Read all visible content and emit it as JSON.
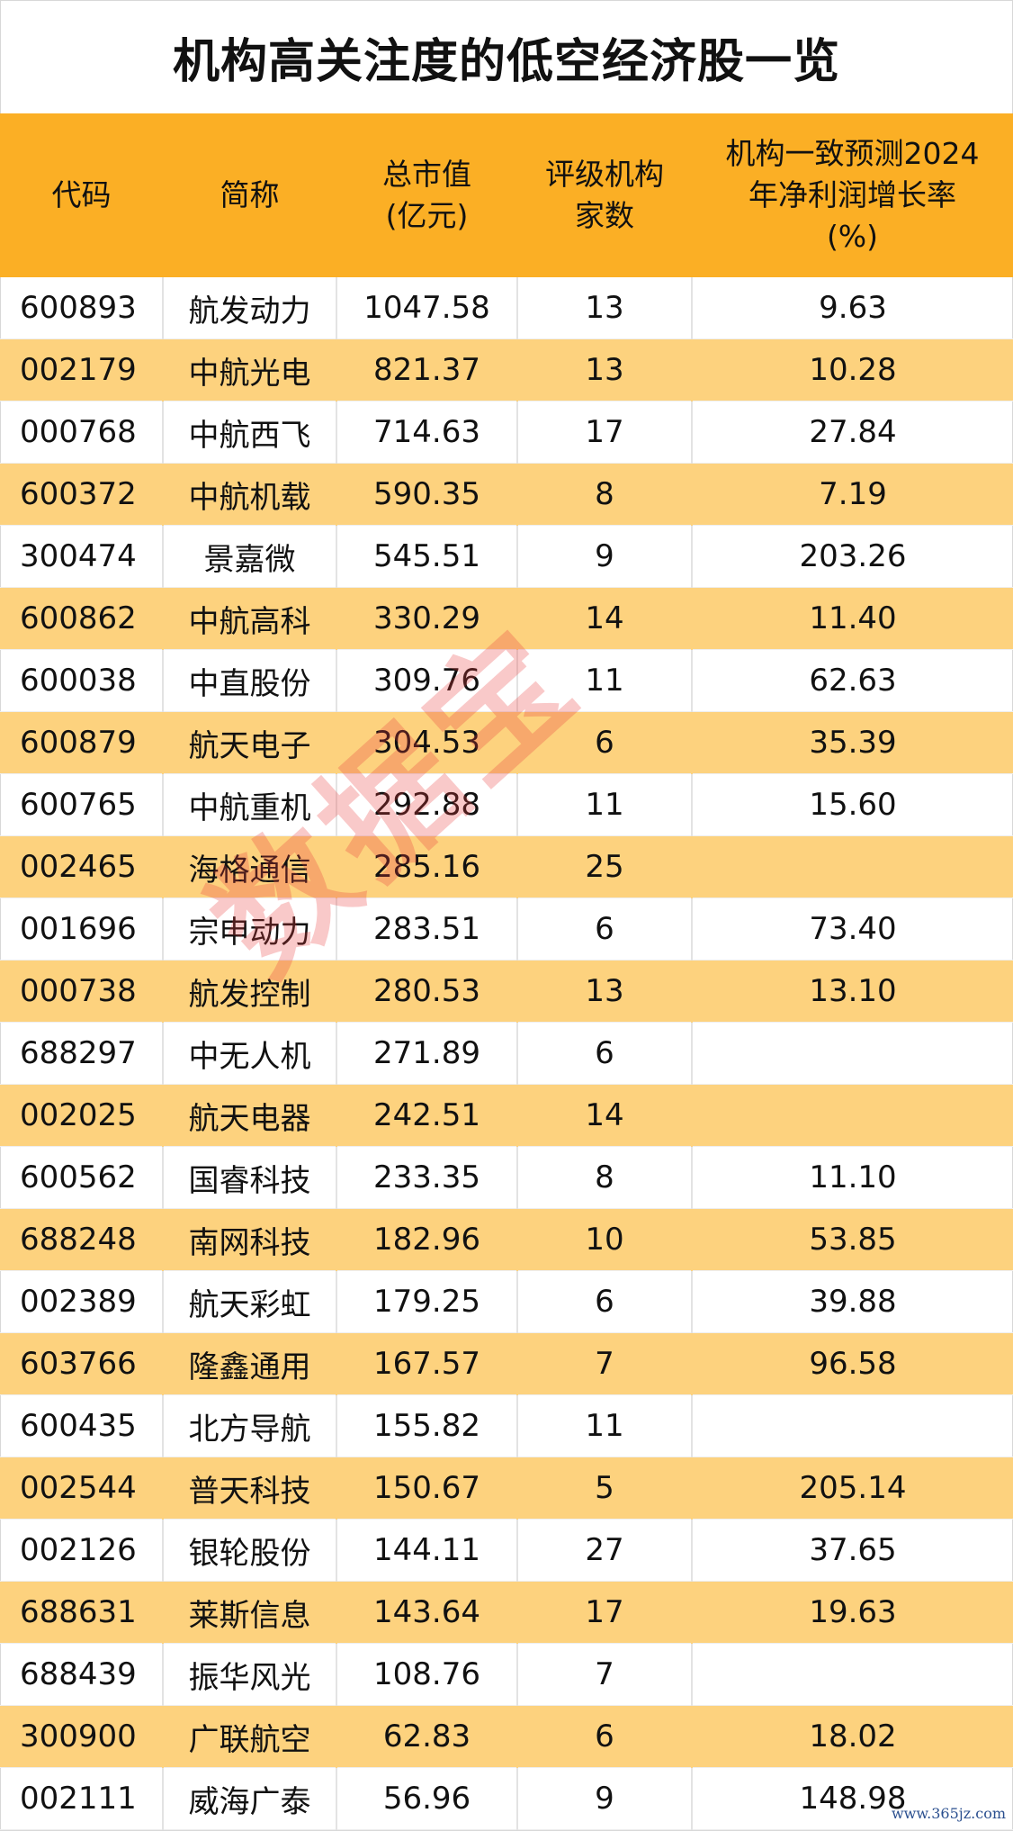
{
  "title": "机构高关注度的低空经济股一览",
  "headers": [
    "代码",
    "简称",
    "总市值\n(亿元)",
    "评级机构\n家数",
    "机构一致预测2024\n年净利润增长率\n(%)"
  ],
  "rows": [
    [
      "600893",
      "航发动力",
      "1047.58",
      "13",
      "9.63"
    ],
    [
      "002179",
      "中航光电",
      "821.37",
      "13",
      "10.28"
    ],
    [
      "000768",
      "中航西飞",
      "714.63",
      "17",
      "27.84"
    ],
    [
      "600372",
      "中航机载",
      "590.35",
      "8",
      "7.19"
    ],
    [
      "300474",
      "景嘉微",
      "545.51",
      "9",
      "203.26"
    ],
    [
      "600862",
      "中航高科",
      "330.29",
      "14",
      "11.40"
    ],
    [
      "600038",
      "中直股份",
      "309.76",
      "11",
      "62.63"
    ],
    [
      "600879",
      "航天电子",
      "304.53",
      "6",
      "35.39"
    ],
    [
      "600765",
      "中航重机",
      "292.88",
      "11",
      "15.60"
    ],
    [
      "002465",
      "海格通信",
      "285.16",
      "25",
      ""
    ],
    [
      "001696",
      "宗申动力",
      "283.51",
      "6",
      "73.40"
    ],
    [
      "000738",
      "航发控制",
      "280.53",
      "13",
      "13.10"
    ],
    [
      "688297",
      "中无人机",
      "271.89",
      "6",
      ""
    ],
    [
      "002025",
      "航天电器",
      "242.51",
      "14",
      ""
    ],
    [
      "600562",
      "国睿科技",
      "233.35",
      "8",
      "11.10"
    ],
    [
      "688248",
      "南网科技",
      "182.96",
      "10",
      "53.85"
    ],
    [
      "002389",
      "航天彩虹",
      "179.25",
      "6",
      "39.88"
    ],
    [
      "603766",
      "隆鑫通用",
      "167.57",
      "7",
      "96.58"
    ],
    [
      "600435",
      "北方导航",
      "155.82",
      "11",
      ""
    ],
    [
      "002544",
      "普天科技",
      "150.67",
      "5",
      "205.14"
    ],
    [
      "002126",
      "银轮股份",
      "144.11",
      "27",
      "37.65"
    ],
    [
      "688631",
      "莱斯信息",
      "143.64",
      "17",
      "19.63"
    ],
    [
      "688439",
      "振华风光",
      "108.76",
      "7",
      ""
    ],
    [
      "300900",
      "广联航空",
      "62.83",
      "6",
      "18.02"
    ],
    [
      "002111",
      "威海广泰",
      "56.96",
      "9",
      "148.98"
    ]
  ],
  "watermark": "数据宝",
  "site_mark": "www.365jz.com",
  "colors": {
    "header_bg": "#fbaf25",
    "alt_row_bg": "#fdd27e",
    "watermark": "#eb3c3c"
  }
}
